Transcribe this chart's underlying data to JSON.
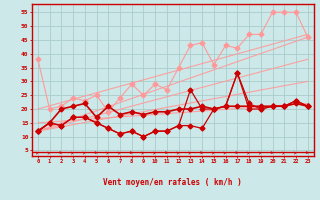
{
  "x": [
    0,
    1,
    2,
    3,
    4,
    5,
    6,
    7,
    8,
    9,
    10,
    11,
    12,
    13,
    14,
    15,
    16,
    17,
    18,
    19,
    20,
    21,
    22,
    23
  ],
  "line_light": [
    38,
    20,
    21,
    24,
    23,
    25,
    19,
    24,
    29,
    25,
    29,
    27,
    35,
    43,
    44,
    36,
    43,
    42,
    47,
    47,
    55,
    55,
    55,
    46
  ],
  "line_dark1": [
    12,
    15,
    20,
    21,
    22,
    17,
    21,
    18,
    19,
    18,
    19,
    19,
    20,
    20,
    21,
    20,
    21,
    21,
    21,
    21,
    21,
    21,
    22,
    21
  ],
  "line_dark2": [
    12,
    15,
    14,
    17,
    17,
    15,
    13,
    11,
    12,
    10,
    12,
    12,
    14,
    14,
    13,
    20,
    21,
    33,
    22,
    20,
    21,
    21,
    23,
    21
  ],
  "line_dark3": [
    12,
    15,
    14,
    17,
    17,
    15,
    13,
    11,
    12,
    10,
    12,
    12,
    14,
    27,
    20,
    20,
    21,
    33,
    20,
    20,
    21,
    21,
    23,
    21
  ],
  "trends": [
    [
      [
        0,
        23
      ],
      [
        20,
        47
      ]
    ],
    [
      [
        0,
        23
      ],
      [
        15,
        22
      ]
    ],
    [
      [
        0,
        23
      ],
      [
        12,
        46
      ]
    ],
    [
      [
        0,
        23
      ],
      [
        12,
        38
      ]
    ],
    [
      [
        0,
        23
      ],
      [
        12,
        30
      ]
    ]
  ],
  "color_light": "#ff9999",
  "color_dark": "#cc0000",
  "bg_color": "#cde8e8",
  "grid_color": "#aacccc",
  "xlabel": "Vent moyen/en rafales ( km/h )",
  "ylabel_ticks": [
    5,
    10,
    15,
    20,
    25,
    30,
    35,
    40,
    45,
    50,
    55
  ],
  "xlim": [
    -0.5,
    23.5
  ],
  "ylim": [
    3,
    58
  ]
}
